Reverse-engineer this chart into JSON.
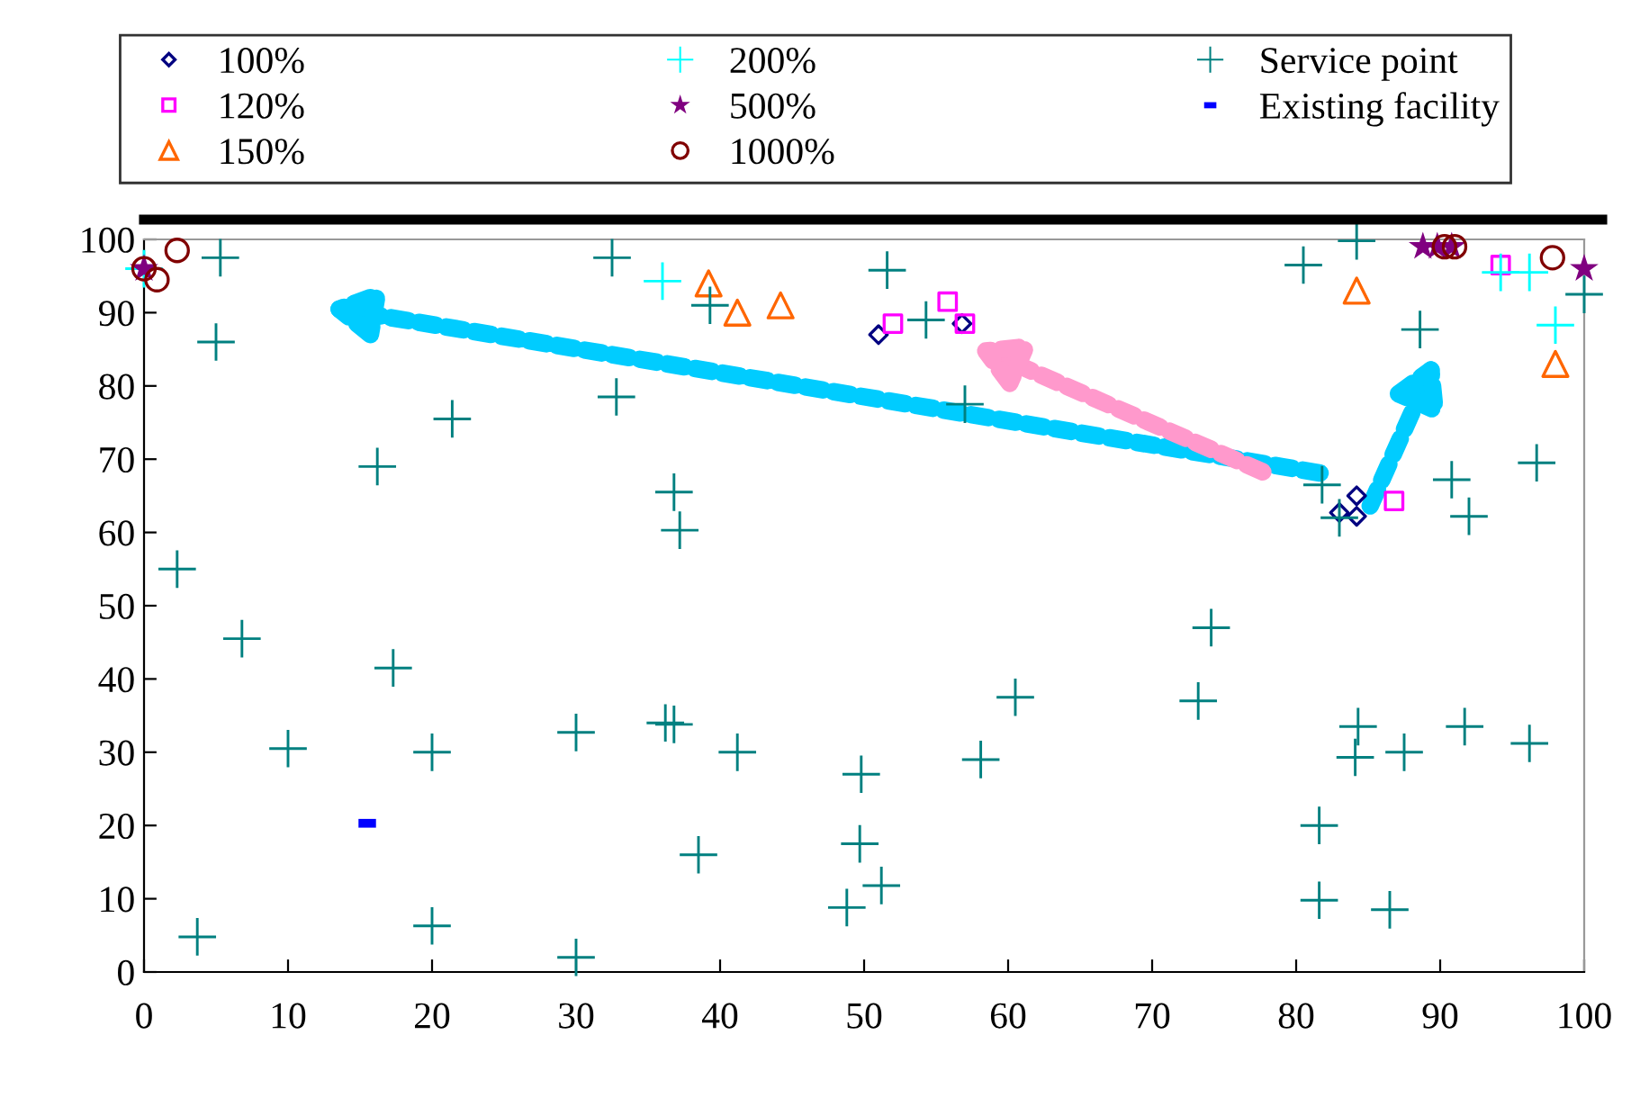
{
  "chart_data": {
    "type": "scatter",
    "xlim": [
      0,
      100
    ],
    "ylim": [
      0,
      100
    ],
    "xticks": [
      0,
      10,
      20,
      30,
      40,
      50,
      60,
      70,
      80,
      90,
      100
    ],
    "yticks": [
      0,
      10,
      20,
      30,
      40,
      50,
      60,
      70,
      80,
      90,
      100
    ],
    "grid": false,
    "legend": "top",
    "series": [
      {
        "name": "100%",
        "color": "#000080",
        "marker": "diamond",
        "x": [
          51,
          56.8,
          83,
          84.2,
          84.2
        ],
        "values": [
          87,
          88.5,
          62.7,
          65,
          62.2
        ]
      },
      {
        "name": "120%",
        "color": "#ff00ff",
        "marker": "square",
        "x": [
          52,
          55.8,
          57,
          86.8,
          94.2
        ],
        "values": [
          88.5,
          91.5,
          88.5,
          64.3,
          96.5
        ]
      },
      {
        "name": "150%",
        "color": "#ff6600",
        "marker": "triangle",
        "x": [
          39.2,
          41.2,
          44.2,
          84.2,
          98
        ],
        "values": [
          94,
          90,
          91,
          93,
          83
        ]
      },
      {
        "name": "200%",
        "color": "#00ffff",
        "marker": "cross",
        "x": [
          0,
          36,
          94.2,
          96.2,
          98
        ],
        "values": [
          96,
          94.3,
          95.5,
          95.5,
          88.3
        ]
      },
      {
        "name": "500%",
        "color": "#800080",
        "marker": "star",
        "x": [
          0,
          88.8,
          89.8,
          90.8,
          100
        ],
        "values": [
          96,
          99,
          99,
          99,
          96
        ]
      },
      {
        "name": "1000%",
        "color": "#800000",
        "marker": "circle",
        "x": [
          0,
          0.9,
          2.3,
          90.3,
          91,
          97.8
        ],
        "values": [
          96,
          94.5,
          98.5,
          99,
          99,
          97.5
        ]
      },
      {
        "name": "Service point",
        "color": "#008080",
        "marker": "cross",
        "x": [
          5.3,
          5,
          2.3,
          6.8,
          10,
          3.7,
          16.2,
          17.3,
          21.4,
          20,
          20,
          30,
          30,
          32.5,
          32.8,
          36.8,
          37.2,
          36.2,
          36.8,
          41.2,
          38.5,
          39.3,
          48.8,
          49.8,
          49.7,
          51.2,
          51.6,
          54.3,
          57,
          58.1,
          60.5,
          73.2,
          74.1,
          80.5,
          81.8,
          83,
          84.2,
          88.6,
          90.8,
          92,
          96.7,
          100,
          81.6,
          81.6,
          86.5,
          84.3,
          84.1,
          87.5,
          91.7,
          96.2
        ],
        "values": [
          97.5,
          86,
          55,
          45.5,
          30.5,
          4.8,
          69,
          41.5,
          75.5,
          30,
          6.3,
          32.7,
          2,
          97.5,
          78.5,
          65.5,
          60.3,
          34,
          33.8,
          30,
          16,
          91,
          8.8,
          27,
          17.5,
          11.8,
          95.8,
          89,
          77.5,
          29,
          37.5,
          37,
          47,
          96.5,
          66.5,
          62,
          99.8,
          87.7,
          67.2,
          62.2,
          69.5,
          92.5,
          20,
          9.8,
          8.5,
          33.5,
          29.3,
          30,
          33.5,
          31.2
        ]
      },
      {
        "name": "Existing facility",
        "color": "#0000ff",
        "x": [
          15.5
        ],
        "values": [
          20.3
        ]
      }
    ]
  }
}
